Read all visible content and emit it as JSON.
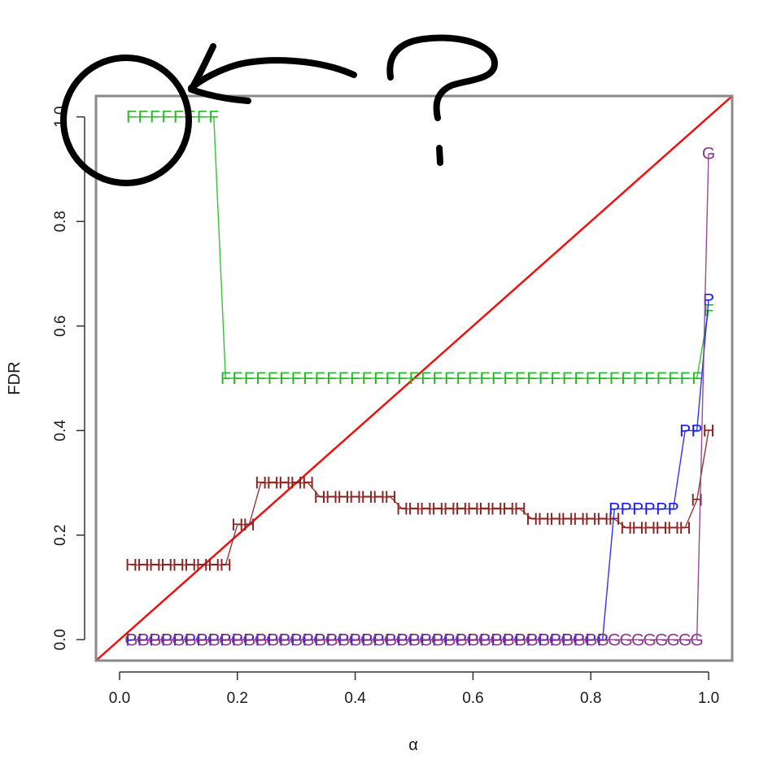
{
  "chart_data": {
    "type": "line",
    "xlabel": "α",
    "ylabel": "FDR",
    "xlim": [
      -0.04,
      1.04
    ],
    "ylim": [
      -0.04,
      1.04
    ],
    "x_ticks": [
      0.0,
      0.2,
      0.4,
      0.6,
      0.8,
      1.0
    ],
    "x_tick_labels": [
      "0.0",
      "0.2",
      "0.4",
      "0.6",
      "0.8",
      "1.0"
    ],
    "y_ticks": [
      0.0,
      0.2,
      0.4,
      0.6,
      0.8,
      1.0
    ],
    "y_tick_labels": [
      "0.0",
      "0.2",
      "0.4",
      "0.6",
      "0.8",
      "1.0"
    ],
    "grid": false,
    "reference_line": {
      "x": [
        -0.04,
        1.04
      ],
      "y": [
        -0.04,
        1.04
      ],
      "color": "#ee1111"
    },
    "series": [
      {
        "marker": "F",
        "color": "#22bb22",
        "points": [
          [
            0.02,
            1.0
          ],
          [
            0.04,
            1.0
          ],
          [
            0.06,
            1.0
          ],
          [
            0.08,
            1.0
          ],
          [
            0.1,
            1.0
          ],
          [
            0.12,
            1.0
          ],
          [
            0.14,
            1.0
          ],
          [
            0.16,
            1.0
          ],
          [
            0.18,
            0.5
          ],
          [
            0.2,
            0.5
          ],
          [
            0.22,
            0.5
          ],
          [
            0.24,
            0.5
          ],
          [
            0.26,
            0.5
          ],
          [
            0.28,
            0.5
          ],
          [
            0.3,
            0.5
          ],
          [
            0.32,
            0.5
          ],
          [
            0.34,
            0.5
          ],
          [
            0.36,
            0.5
          ],
          [
            0.38,
            0.5
          ],
          [
            0.4,
            0.5
          ],
          [
            0.42,
            0.5
          ],
          [
            0.44,
            0.5
          ],
          [
            0.46,
            0.5
          ],
          [
            0.48,
            0.5
          ],
          [
            0.5,
            0.5
          ],
          [
            0.52,
            0.5
          ],
          [
            0.54,
            0.5
          ],
          [
            0.56,
            0.5
          ],
          [
            0.58,
            0.5
          ],
          [
            0.6,
            0.5
          ],
          [
            0.62,
            0.5
          ],
          [
            0.64,
            0.5
          ],
          [
            0.66,
            0.5
          ],
          [
            0.68,
            0.5
          ],
          [
            0.7,
            0.5
          ],
          [
            0.72,
            0.5
          ],
          [
            0.74,
            0.5
          ],
          [
            0.76,
            0.5
          ],
          [
            0.78,
            0.5
          ],
          [
            0.8,
            0.5
          ],
          [
            0.82,
            0.5
          ],
          [
            0.84,
            0.5
          ],
          [
            0.86,
            0.5
          ],
          [
            0.88,
            0.5
          ],
          [
            0.9,
            0.5
          ],
          [
            0.92,
            0.5
          ],
          [
            0.94,
            0.5
          ],
          [
            0.96,
            0.5
          ],
          [
            0.98,
            0.5
          ],
          [
            1.0,
            0.63
          ]
        ]
      },
      {
        "marker": "H",
        "color": "#8b2323",
        "points": [
          [
            0.02,
            0.143
          ],
          [
            0.04,
            0.143
          ],
          [
            0.06,
            0.143
          ],
          [
            0.08,
            0.143
          ],
          [
            0.1,
            0.143
          ],
          [
            0.12,
            0.143
          ],
          [
            0.14,
            0.143
          ],
          [
            0.16,
            0.143
          ],
          [
            0.18,
            0.143
          ],
          [
            0.2,
            0.22
          ],
          [
            0.22,
            0.22
          ],
          [
            0.24,
            0.3
          ],
          [
            0.26,
            0.3
          ],
          [
            0.28,
            0.3
          ],
          [
            0.3,
            0.3
          ],
          [
            0.32,
            0.3
          ],
          [
            0.34,
            0.273
          ],
          [
            0.36,
            0.273
          ],
          [
            0.38,
            0.273
          ],
          [
            0.4,
            0.273
          ],
          [
            0.42,
            0.273
          ],
          [
            0.44,
            0.273
          ],
          [
            0.46,
            0.273
          ],
          [
            0.48,
            0.25
          ],
          [
            0.5,
            0.25
          ],
          [
            0.52,
            0.25
          ],
          [
            0.54,
            0.25
          ],
          [
            0.56,
            0.25
          ],
          [
            0.58,
            0.25
          ],
          [
            0.6,
            0.25
          ],
          [
            0.62,
            0.25
          ],
          [
            0.64,
            0.25
          ],
          [
            0.66,
            0.25
          ],
          [
            0.68,
            0.25
          ],
          [
            0.7,
            0.231
          ],
          [
            0.72,
            0.231
          ],
          [
            0.74,
            0.231
          ],
          [
            0.76,
            0.231
          ],
          [
            0.78,
            0.231
          ],
          [
            0.8,
            0.231
          ],
          [
            0.82,
            0.231
          ],
          [
            0.84,
            0.231
          ],
          [
            0.86,
            0.214
          ],
          [
            0.88,
            0.214
          ],
          [
            0.9,
            0.214
          ],
          [
            0.92,
            0.214
          ],
          [
            0.94,
            0.214
          ],
          [
            0.96,
            0.214
          ],
          [
            0.98,
            0.267
          ],
          [
            1.0,
            0.4
          ]
        ]
      },
      {
        "marker": "P",
        "color": "#1a1aff",
        "points": [
          [
            0.02,
            0.0
          ],
          [
            0.04,
            0.0
          ],
          [
            0.06,
            0.0
          ],
          [
            0.08,
            0.0
          ],
          [
            0.1,
            0.0
          ],
          [
            0.12,
            0.0
          ],
          [
            0.14,
            0.0
          ],
          [
            0.16,
            0.0
          ],
          [
            0.18,
            0.0
          ],
          [
            0.2,
            0.0
          ],
          [
            0.22,
            0.0
          ],
          [
            0.24,
            0.0
          ],
          [
            0.26,
            0.0
          ],
          [
            0.28,
            0.0
          ],
          [
            0.3,
            0.0
          ],
          [
            0.32,
            0.0
          ],
          [
            0.34,
            0.0
          ],
          [
            0.36,
            0.0
          ],
          [
            0.38,
            0.0
          ],
          [
            0.4,
            0.0
          ],
          [
            0.42,
            0.0
          ],
          [
            0.44,
            0.0
          ],
          [
            0.46,
            0.0
          ],
          [
            0.48,
            0.0
          ],
          [
            0.5,
            0.0
          ],
          [
            0.52,
            0.0
          ],
          [
            0.54,
            0.0
          ],
          [
            0.56,
            0.0
          ],
          [
            0.58,
            0.0
          ],
          [
            0.6,
            0.0
          ],
          [
            0.62,
            0.0
          ],
          [
            0.64,
            0.0
          ],
          [
            0.66,
            0.0
          ],
          [
            0.68,
            0.0
          ],
          [
            0.7,
            0.0
          ],
          [
            0.72,
            0.0
          ],
          [
            0.74,
            0.0
          ],
          [
            0.76,
            0.0
          ],
          [
            0.78,
            0.0
          ],
          [
            0.8,
            0.0
          ],
          [
            0.82,
            0.0
          ],
          [
            0.84,
            0.25
          ],
          [
            0.86,
            0.25
          ],
          [
            0.88,
            0.25
          ],
          [
            0.9,
            0.25
          ],
          [
            0.92,
            0.25
          ],
          [
            0.94,
            0.25
          ],
          [
            0.96,
            0.4
          ],
          [
            0.98,
            0.4
          ],
          [
            1.0,
            0.65
          ]
        ]
      },
      {
        "marker": "G",
        "color": "#8b3a8b",
        "points": [
          [
            0.02,
            0.0
          ],
          [
            0.04,
            0.0
          ],
          [
            0.06,
            0.0
          ],
          [
            0.08,
            0.0
          ],
          [
            0.1,
            0.0
          ],
          [
            0.12,
            0.0
          ],
          [
            0.14,
            0.0
          ],
          [
            0.16,
            0.0
          ],
          [
            0.18,
            0.0
          ],
          [
            0.2,
            0.0
          ],
          [
            0.22,
            0.0
          ],
          [
            0.24,
            0.0
          ],
          [
            0.26,
            0.0
          ],
          [
            0.28,
            0.0
          ],
          [
            0.3,
            0.0
          ],
          [
            0.32,
            0.0
          ],
          [
            0.34,
            0.0
          ],
          [
            0.36,
            0.0
          ],
          [
            0.38,
            0.0
          ],
          [
            0.4,
            0.0
          ],
          [
            0.42,
            0.0
          ],
          [
            0.44,
            0.0
          ],
          [
            0.46,
            0.0
          ],
          [
            0.48,
            0.0
          ],
          [
            0.5,
            0.0
          ],
          [
            0.52,
            0.0
          ],
          [
            0.54,
            0.0
          ],
          [
            0.56,
            0.0
          ],
          [
            0.58,
            0.0
          ],
          [
            0.6,
            0.0
          ],
          [
            0.62,
            0.0
          ],
          [
            0.64,
            0.0
          ],
          [
            0.66,
            0.0
          ],
          [
            0.68,
            0.0
          ],
          [
            0.7,
            0.0
          ],
          [
            0.72,
            0.0
          ],
          [
            0.74,
            0.0
          ],
          [
            0.76,
            0.0
          ],
          [
            0.78,
            0.0
          ],
          [
            0.8,
            0.0
          ],
          [
            0.82,
            0.0
          ],
          [
            0.84,
            0.0
          ],
          [
            0.86,
            0.0
          ],
          [
            0.88,
            0.0
          ],
          [
            0.9,
            0.0
          ],
          [
            0.92,
            0.0
          ],
          [
            0.94,
            0.0
          ],
          [
            0.96,
            0.0
          ],
          [
            0.98,
            0.0
          ],
          [
            1.0,
            0.93
          ]
        ]
      }
    ],
    "annotations": [
      {
        "kind": "circle",
        "target": "F markers at top-left"
      },
      {
        "kind": "arrow",
        "direction": "pointing left toward circled region"
      },
      {
        "kind": "question-mark",
        "text": "?"
      }
    ]
  }
}
